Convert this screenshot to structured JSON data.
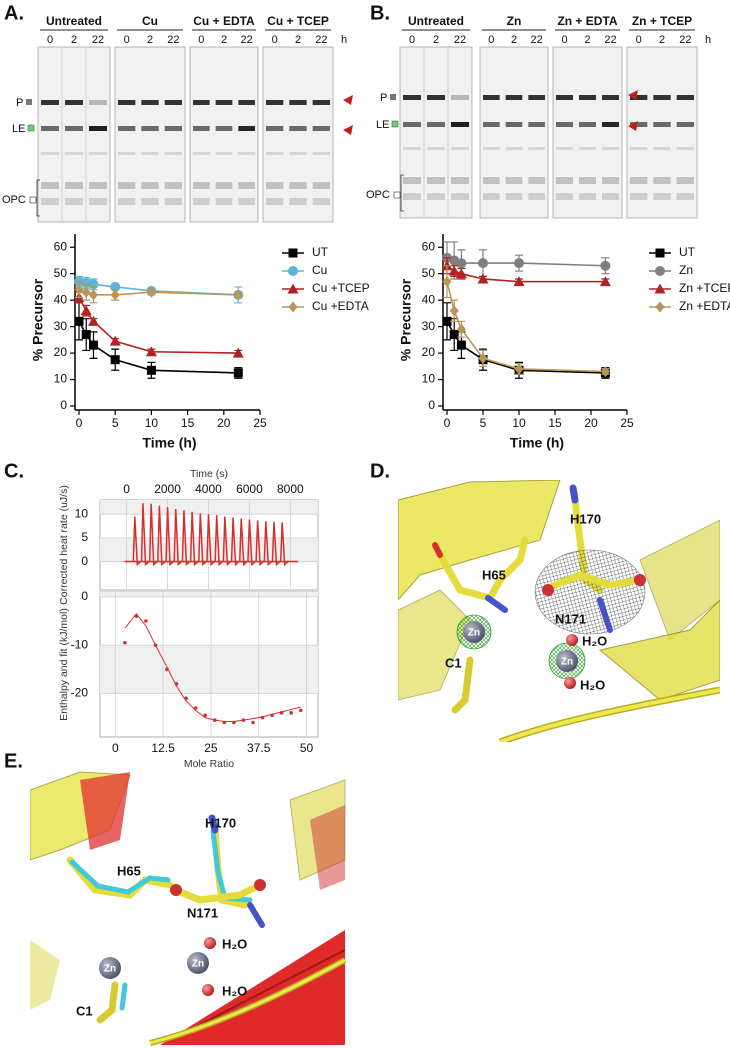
{
  "panels": {
    "A": "A.",
    "B": "B.",
    "C": "C.",
    "D": "D.",
    "E": "E."
  },
  "gels": [
    {
      "groups": [
        "Untreated",
        "Cu",
        "Cu + EDTA",
        "Cu + TCEP"
      ],
      "lanes": [
        0,
        2,
        22
      ],
      "unit": "h",
      "bands": [
        "P",
        "LE",
        "OPC"
      ]
    },
    {
      "groups": [
        "Untreated",
        "Zn",
        "Zn + EDTA",
        "Zn + TCEP"
      ],
      "lanes": [
        0,
        2,
        22
      ],
      "unit": "h",
      "bands": [
        "P",
        "LE",
        "OPC"
      ]
    }
  ],
  "chart_data": [
    {
      "type": "line",
      "ylabel": "% Precursor",
      "xlabel": "Time (h)",
      "x": [
        0,
        1,
        2,
        5,
        10,
        22
      ],
      "xlim": [
        0,
        25
      ],
      "xticks": [
        0,
        5,
        10,
        15,
        20,
        25
      ],
      "ylim": [
        0,
        65
      ],
      "yticks": [
        0,
        10,
        20,
        30,
        40,
        50,
        60
      ],
      "legend": "right",
      "series": [
        {
          "name": "UT",
          "color": "#000000",
          "marker": "square",
          "values": [
            32,
            27,
            23,
            17.5,
            13.5,
            12.5
          ],
          "errors": [
            7,
            6,
            5,
            4,
            3,
            2
          ]
        },
        {
          "name": "Cu",
          "color": "#5fb4d6",
          "marker": "circle",
          "values": [
            47,
            46.5,
            46,
            45,
            43.5,
            42
          ],
          "errors": [
            2,
            2,
            2,
            1,
            1,
            3
          ]
        },
        {
          "name": "Cu +TCEP",
          "color": "#b22222",
          "marker": "triangle",
          "values": [
            41,
            36,
            32,
            24.5,
            20.5,
            20
          ],
          "errors": [
            2,
            2,
            1,
            1,
            1,
            1
          ]
        },
        {
          "name": "Cu +EDTA",
          "color": "#b8965a",
          "marker": "diamond",
          "values": [
            44,
            43,
            42,
            42,
            43,
            42
          ],
          "errors": [
            3,
            3,
            3,
            2,
            1,
            1
          ]
        }
      ]
    },
    {
      "type": "line",
      "ylabel": "% Precursor",
      "xlabel": "Time (h)",
      "x": [
        0,
        1,
        2,
        5,
        10,
        22
      ],
      "xlim": [
        0,
        25
      ],
      "xticks": [
        0,
        5,
        10,
        15,
        20,
        25
      ],
      "ylim": [
        0,
        65
      ],
      "yticks": [
        0,
        10,
        20,
        30,
        40,
        50,
        60
      ],
      "legend": "right",
      "series": [
        {
          "name": "UT",
          "color": "#000000",
          "marker": "square",
          "values": [
            32,
            27,
            23,
            17.5,
            13.5,
            12.5
          ],
          "errors": [
            7,
            6,
            5,
            4,
            3,
            2
          ]
        },
        {
          "name": "Zn",
          "color": "#7f7f7f",
          "marker": "circle",
          "values": [
            56,
            55,
            54,
            54,
            54,
            53
          ],
          "errors": [
            6,
            7,
            5,
            5,
            3,
            3
          ]
        },
        {
          "name": "Zn +TCEP",
          "color": "#b22222",
          "marker": "triangle",
          "values": [
            53,
            51,
            50,
            48,
            47,
            47
          ],
          "errors": [
            3,
            2,
            2,
            1,
            1,
            1
          ]
        },
        {
          "name": "Zn +EDTA",
          "color": "#b8965a",
          "marker": "diamond",
          "values": [
            47,
            36,
            29,
            18,
            14,
            13
          ],
          "errors": [
            6,
            4,
            3,
            3,
            2,
            1
          ]
        }
      ]
    },
    {
      "type": "stem",
      "xlabel": "Time (s)",
      "ylabel": "Corrected heat rate (uJ/s)",
      "x_axis": "top",
      "x": [
        400,
        800,
        1200,
        1600,
        2000,
        2400,
        2800,
        3200,
        3600,
        4000,
        4400,
        4800,
        5200,
        5600,
        6000,
        6400,
        6800,
        7200,
        7600
      ],
      "values": [
        9.5,
        12.3,
        12.2,
        11.8,
        11.5,
        11.1,
        10.8,
        10.5,
        10.2,
        10,
        9.8,
        9.5,
        9.3,
        9.1,
        8.9,
        8.7,
        8.5,
        8.4,
        8.3
      ],
      "color": "#d62f2f",
      "xlim": [
        -1300,
        9350
      ],
      "xticks": [
        0,
        2000,
        4000,
        6000,
        8000
      ],
      "ylim": [
        -6,
        13
      ],
      "yticks": [
        0,
        5,
        10
      ],
      "grid": true
    },
    {
      "type": "scatter",
      "xlabel": "Mole Ratio",
      "ylabel": "Enthalpy and fit (kJ/mol)",
      "x": [
        2.5,
        5.5,
        8,
        10.5,
        13.5,
        16,
        18.5,
        21,
        23.5,
        26,
        28.5,
        31,
        33.5,
        36,
        38.5,
        41,
        43.5,
        46,
        48.5
      ],
      "series": [
        {
          "color": "#d62f2f",
          "style": "points",
          "values": [
            -9.5,
            -4,
            -5,
            -10,
            -15,
            -18,
            -21,
            -23,
            -24.5,
            -25.5,
            -26,
            -26,
            -25.5,
            -26,
            -25,
            -24.5,
            -24,
            -24,
            -23.5
          ]
        },
        {
          "color": "#d62f2f",
          "style": "line",
          "values": [
            -6.5,
            -3.5,
            -6,
            -10,
            -14.5,
            -18.5,
            -21.5,
            -23.5,
            -25,
            -25.5,
            -25.8,
            -25.8,
            -25.5,
            -25.2,
            -24.8,
            -24.3,
            -23.8,
            -23.3,
            -22.8
          ]
        }
      ],
      "xlim": [
        -4,
        53
      ],
      "xticks": [
        0,
        12.5,
        25,
        37.5,
        50
      ],
      "ylim": [
        -29,
        1
      ],
      "yticks": [
        -20,
        -10,
        0
      ],
      "grid": true
    }
  ],
  "structures": {
    "D": {
      "residues": [
        "H170",
        "H65",
        "N171",
        "C1"
      ],
      "water": "H₂O",
      "metal": "Zn"
    },
    "E": {
      "residues": [
        "H170",
        "H65",
        "N171",
        "C1"
      ],
      "water": "H₂O",
      "metal": "Zn"
    }
  }
}
